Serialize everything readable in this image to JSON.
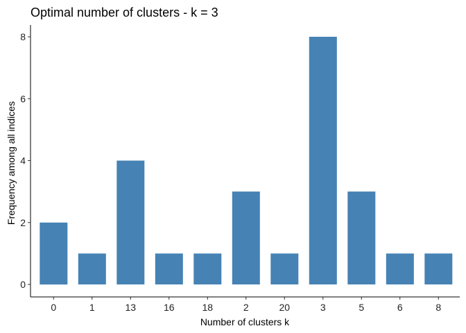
{
  "chart_data": {
    "type": "bar",
    "title": "Optimal number of clusters - k = 3",
    "xlabel": "Number of clusters k",
    "ylabel": "Frequency among all indices",
    "categories": [
      "0",
      "1",
      "13",
      "16",
      "18",
      "2",
      "20",
      "3",
      "5",
      "6",
      "8"
    ],
    "values": [
      2,
      1,
      4,
      1,
      1,
      3,
      1,
      8,
      3,
      1,
      1
    ],
    "ylim": [
      0,
      8.4
    ],
    "yticks": [
      0,
      2,
      4,
      6,
      8
    ],
    "bar_color": "#4682B4",
    "grid": false,
    "legend": "none"
  }
}
